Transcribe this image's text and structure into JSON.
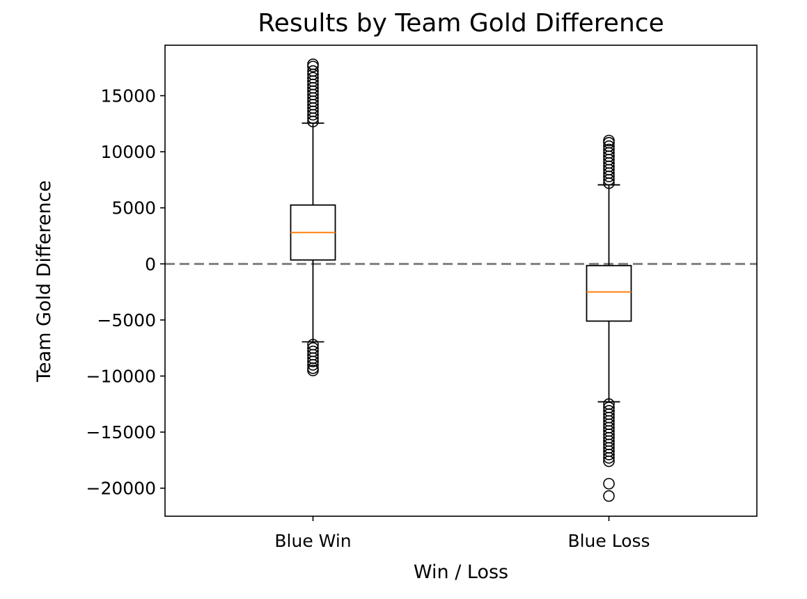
{
  "chart_data": {
    "type": "box",
    "title": "Results by Team Gold Difference",
    "xlabel": "Win / Loss",
    "ylabel": "Team Gold Difference",
    "categories": [
      "Blue Win",
      "Blue Loss"
    ],
    "ylim": [
      -22500,
      19500
    ],
    "yticks": [
      15000,
      10000,
      5000,
      0,
      -5000,
      -10000,
      -15000,
      -20000
    ],
    "ytick_labels": [
      "15000",
      "10000",
      "5000",
      "0",
      "−5000",
      "−10000",
      "−15000",
      "−20000"
    ],
    "reference_line": {
      "y": 0,
      "style": "dashed",
      "color": "#808080"
    },
    "median_color": "#ff7f0e",
    "boxes": [
      {
        "name": "Blue Win",
        "whisker_low": -6950,
        "q1": 350,
        "median": 2800,
        "q3": 5250,
        "whisker_high": 12550,
        "outliers": [
          12700,
          13000,
          13300,
          13600,
          13900,
          14200,
          14500,
          14800,
          15100,
          15400,
          15700,
          16000,
          16300,
          16600,
          16900,
          17200,
          17600,
          17800,
          -7200,
          -7500,
          -7800,
          -8100,
          -8400,
          -8700,
          -9000,
          -9300,
          -9500
        ]
      },
      {
        "name": "Blue Loss",
        "whisker_low": -12300,
        "q1": -5100,
        "median": -2500,
        "q3": -150,
        "whisker_high": 7050,
        "outliers": [
          7200,
          7500,
          7800,
          8100,
          8400,
          8700,
          9000,
          9300,
          9600,
          9900,
          10200,
          10500,
          10800,
          11000,
          -12500,
          -12800,
          -13100,
          -13400,
          -13700,
          -14000,
          -14300,
          -14600,
          -14900,
          -15200,
          -15500,
          -15800,
          -16100,
          -16400,
          -16700,
          -17000,
          -17300,
          -17600,
          -19600,
          -20700
        ]
      }
    ]
  }
}
